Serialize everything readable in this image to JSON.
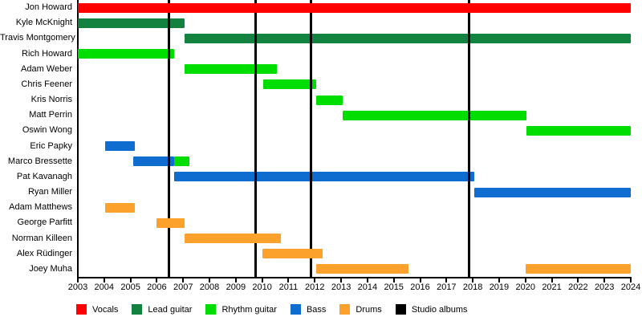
{
  "chart_data": {
    "type": "gantt",
    "title": "",
    "xlabel": "",
    "ylabel": "",
    "x_axis": {
      "start": 2003,
      "end": 2024,
      "ticks": [
        2003,
        2004,
        2005,
        2006,
        2007,
        2008,
        2009,
        2010,
        2011,
        2012,
        2013,
        2014,
        2015,
        2016,
        2017,
        2018,
        2019,
        2020,
        2021,
        2022,
        2023,
        2024
      ]
    },
    "members": [
      {
        "name": "Jon Howard",
        "bars": [
          {
            "role": "Vocals",
            "start": 2003,
            "end": 2024
          }
        ]
      },
      {
        "name": "Kyle McKnight",
        "bars": [
          {
            "role": "Lead guitar",
            "start": 2003,
            "end": 2007.05
          }
        ]
      },
      {
        "name": "Travis Montgomery",
        "bars": [
          {
            "role": "Lead guitar",
            "start": 2007.05,
            "end": 2024
          }
        ]
      },
      {
        "name": "Rich Howard",
        "bars": [
          {
            "role": "Rhythm guitar",
            "start": 2003,
            "end": 2006.65
          }
        ]
      },
      {
        "name": "Adam Weber",
        "bars": [
          {
            "role": "Rhythm guitar",
            "start": 2007.05,
            "end": 2010.55
          }
        ]
      },
      {
        "name": "Chris Feener",
        "bars": [
          {
            "role": "Rhythm guitar",
            "start": 2010.05,
            "end": 2012.05
          }
        ]
      },
      {
        "name": "Kris Norris",
        "bars": [
          {
            "role": "Rhythm guitar",
            "start": 2012.05,
            "end": 2013.05
          }
        ]
      },
      {
        "name": "Matt Perrin",
        "bars": [
          {
            "role": "Rhythm guitar",
            "start": 2013.05,
            "end": 2020.05
          }
        ]
      },
      {
        "name": "Oswin Wong",
        "bars": [
          {
            "role": "Rhythm guitar",
            "start": 2020.05,
            "end": 2024
          }
        ]
      },
      {
        "name": "Eric Papky",
        "bars": [
          {
            "role": "Bass",
            "start": 2004.05,
            "end": 2005.15
          }
        ]
      },
      {
        "name": "Marco Bressette",
        "bars": [
          {
            "role": "Bass",
            "start": 2005.1,
            "end": 2006.65
          },
          {
            "role": "Rhythm guitar",
            "start": 2006.65,
            "end": 2007.25
          }
        ]
      },
      {
        "name": "Pat Kavanagh",
        "bars": [
          {
            "role": "Bass",
            "start": 2006.65,
            "end": 2018.05
          }
        ]
      },
      {
        "name": "Ryan Miller",
        "bars": [
          {
            "role": "Bass",
            "start": 2018.05,
            "end": 2024
          }
        ]
      },
      {
        "name": "Adam Matthews",
        "bars": [
          {
            "role": "Drums",
            "start": 2004.05,
            "end": 2005.15
          }
        ]
      },
      {
        "name": "George Parfitt",
        "bars": [
          {
            "role": "Drums",
            "start": 2006.0,
            "end": 2007.05
          }
        ]
      },
      {
        "name": "Norman Killeen",
        "bars": [
          {
            "role": "Drums",
            "start": 2007.05,
            "end": 2010.7
          }
        ]
      },
      {
        "name": "Alex Rüdinger",
        "bars": [
          {
            "role": "Drums",
            "start": 2010.0,
            "end": 2012.3
          }
        ]
      },
      {
        "name": "Joey Muha",
        "bars": [
          {
            "role": "Drums",
            "start": 2012.05,
            "end": 2015.55
          },
          {
            "role": "Drums",
            "start": 2020.0,
            "end": 2024
          }
        ]
      }
    ],
    "album_lines": [
      2006.45,
      2009.75,
      2011.85,
      2017.85
    ],
    "role_colors": {
      "Vocals": "#ff0000",
      "Lead guitar": "#13813f",
      "Rhythm guitar": "#00dd00",
      "Bass": "#0e6dcf",
      "Drums": "#fba12c",
      "Studio albums": "#000000"
    },
    "legend": [
      {
        "label": "Vocals",
        "color": "#ff0000"
      },
      {
        "label": "Lead guitar",
        "color": "#13813f"
      },
      {
        "label": "Rhythm guitar",
        "color": "#00dd00"
      },
      {
        "label": "Bass",
        "color": "#0e6dcf"
      },
      {
        "label": "Drums",
        "color": "#fba12c"
      },
      {
        "label": "Studio albums",
        "color": "#000000"
      }
    ]
  }
}
